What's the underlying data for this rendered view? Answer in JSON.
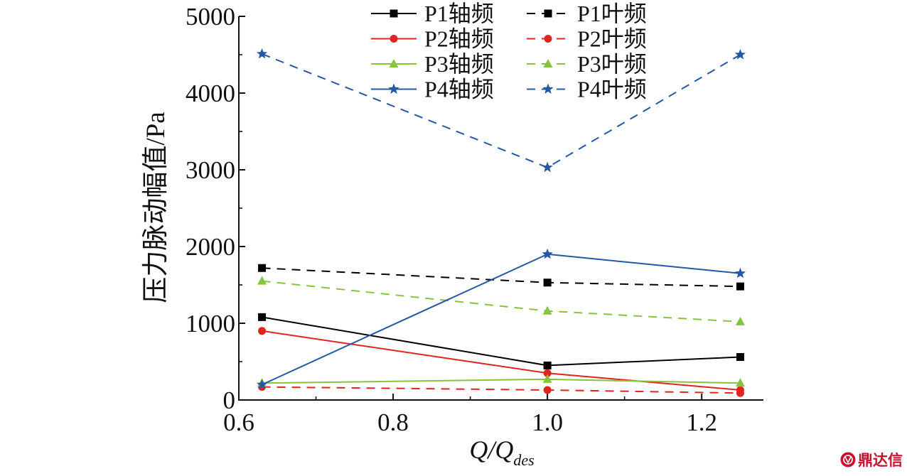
{
  "chart_data": {
    "type": "line",
    "xlabel": {
      "main": "Q/Q",
      "subscript": "des"
    },
    "ylabel": "压力脉动幅值/Pa",
    "x": [
      0.63,
      1.0,
      1.25
    ],
    "xlim": [
      0.6,
      1.28
    ],
    "ylim": [
      0,
      5000
    ],
    "xticks": [
      0.6,
      0.8,
      1.0,
      1.2
    ],
    "xtick_labels": [
      "0.6",
      "0.8",
      "1.0",
      "1.2"
    ],
    "xminor_ticks": [
      0.7,
      0.9,
      1.1
    ],
    "yticks": [
      0,
      1000,
      2000,
      3000,
      4000,
      5000
    ],
    "yminor_ticks": [
      500,
      1500,
      2500,
      3500,
      4500
    ],
    "grid": false,
    "legend_placement": "top-center",
    "series": [
      {
        "name": "P1轴频",
        "color": "#000000",
        "line_style": "solid",
        "marker": "square",
        "values": [
          1080,
          450,
          560
        ]
      },
      {
        "name": "P2轴频",
        "color": "#e02420",
        "line_style": "solid",
        "marker": "circle",
        "values": [
          900,
          350,
          130
        ]
      },
      {
        "name": "P3轴频",
        "color": "#86c440",
        "line_style": "solid",
        "marker": "triangle",
        "values": [
          220,
          270,
          220
        ]
      },
      {
        "name": "P4轴频",
        "color": "#2458a4",
        "line_style": "solid",
        "marker": "star",
        "values": [
          200,
          1900,
          1650
        ]
      },
      {
        "name": "P1叶频",
        "color": "#000000",
        "line_style": "dashed",
        "marker": "square",
        "values": [
          1720,
          1530,
          1480
        ]
      },
      {
        "name": "P2叶频",
        "color": "#e02420",
        "line_style": "dashed",
        "marker": "circle",
        "values": [
          170,
          130,
          90
        ]
      },
      {
        "name": "P3叶频",
        "color": "#86c440",
        "line_style": "dashed",
        "marker": "triangle",
        "values": [
          1550,
          1160,
          1020
        ]
      },
      {
        "name": "P4叶频",
        "color": "#2458a4",
        "line_style": "dashed",
        "marker": "star",
        "values": [
          4510,
          3030,
          4500
        ]
      }
    ]
  },
  "watermark": {
    "text": "鼎达信",
    "color": "#c8102e"
  }
}
